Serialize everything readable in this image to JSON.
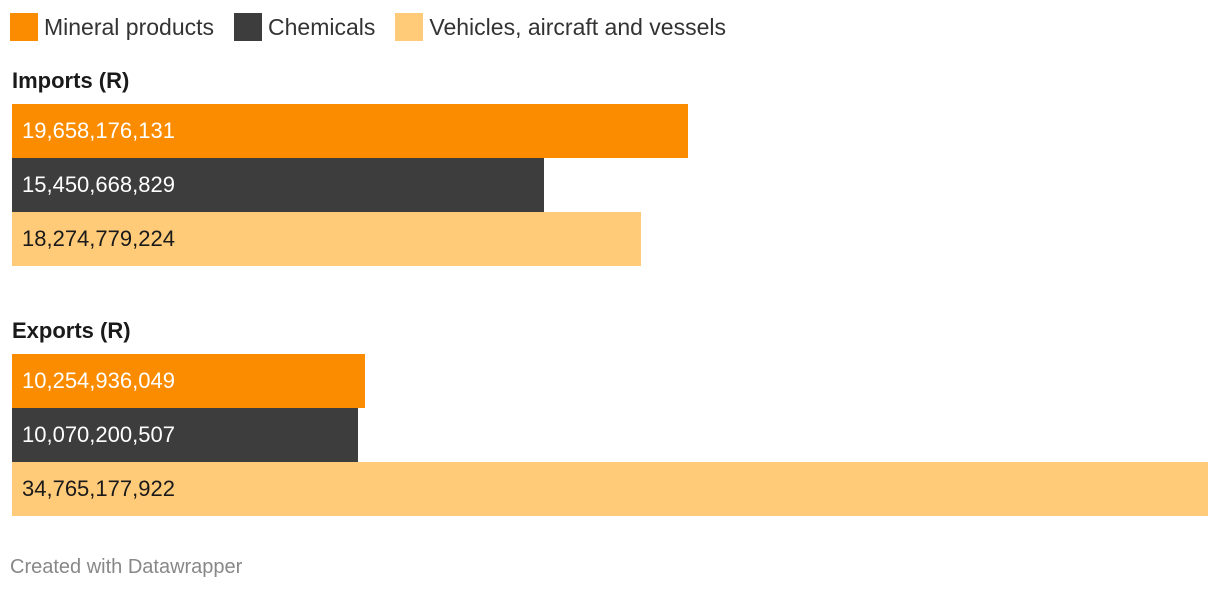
{
  "chart_data": {
    "type": "bar",
    "orientation": "horizontal",
    "categories": [
      "Imports (R)",
      "Exports (R)"
    ],
    "series": [
      {
        "name": "Mineral products",
        "color": "#fb8c00",
        "label_color": "#ffffff",
        "values": [
          19658176131,
          10254936049
        ],
        "labels": [
          "19,658,176,131",
          "10,254,936,049"
        ]
      },
      {
        "name": "Chemicals",
        "color": "#3d3d3d",
        "label_color": "#ffffff",
        "values": [
          15450668829,
          10070200507
        ],
        "labels": [
          "15,450,668,829",
          "10,070,200,507"
        ]
      },
      {
        "name": "Vehicles, aircraft and vessels",
        "color": "#ffcb78",
        "label_color": "#1a1a1a",
        "values": [
          18274779224,
          34765177922
        ],
        "labels": [
          "18,274,779,224",
          "34,765,177,922"
        ]
      }
    ],
    "xlim": [
      0,
      34765177922
    ],
    "legend": "top-left",
    "grid": false
  },
  "footer": {
    "credit": "Created with Datawrapper"
  }
}
